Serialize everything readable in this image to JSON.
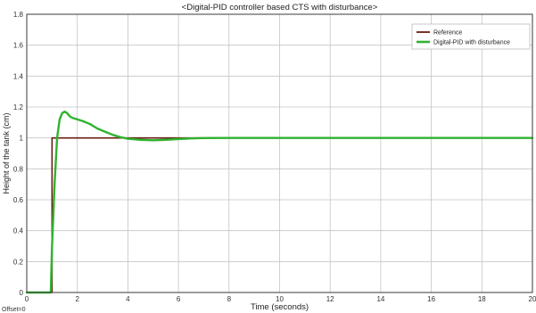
{
  "chart_data": {
    "type": "line",
    "title": "<Digital-PID controller based CTS with disturbance>",
    "xlabel": "Time (seconds)",
    "ylabel": "Height of the tank (cm)",
    "xlim": [
      0,
      20
    ],
    "ylim": [
      0,
      1.8
    ],
    "x_ticks": [
      0,
      2,
      4,
      6,
      8,
      10,
      12,
      14,
      16,
      18,
      20
    ],
    "y_ticks": [
      0,
      0.2,
      0.4,
      0.6,
      0.8,
      1,
      1.2,
      1.4,
      1.6,
      1.8
    ],
    "grid": true,
    "legend_position": "top-right",
    "footer_note": "Offset=0",
    "series": [
      {
        "name": "Reference",
        "color": "#6b1e12",
        "x": [
          0,
          1,
          1,
          20
        ],
        "y": [
          0,
          0,
          1,
          1
        ]
      },
      {
        "name": "Digital-PID with disturbance",
        "color": "#2fb32f",
        "x": [
          0,
          0.95,
          1.0,
          1.1,
          1.2,
          1.3,
          1.4,
          1.5,
          1.6,
          1.7,
          1.8,
          2.0,
          2.2,
          2.5,
          2.8,
          3.1,
          3.4,
          3.7,
          4.0,
          4.5,
          5.0,
          5.5,
          6.0,
          6.5,
          7.0,
          8.0,
          20
        ],
        "y": [
          0,
          0,
          0.3,
          0.7,
          1.0,
          1.12,
          1.16,
          1.17,
          1.16,
          1.14,
          1.13,
          1.12,
          1.11,
          1.09,
          1.06,
          1.04,
          1.02,
          1.005,
          0.995,
          0.988,
          0.985,
          0.988,
          0.993,
          0.997,
          0.999,
          1.0,
          1.0
        ]
      }
    ]
  }
}
